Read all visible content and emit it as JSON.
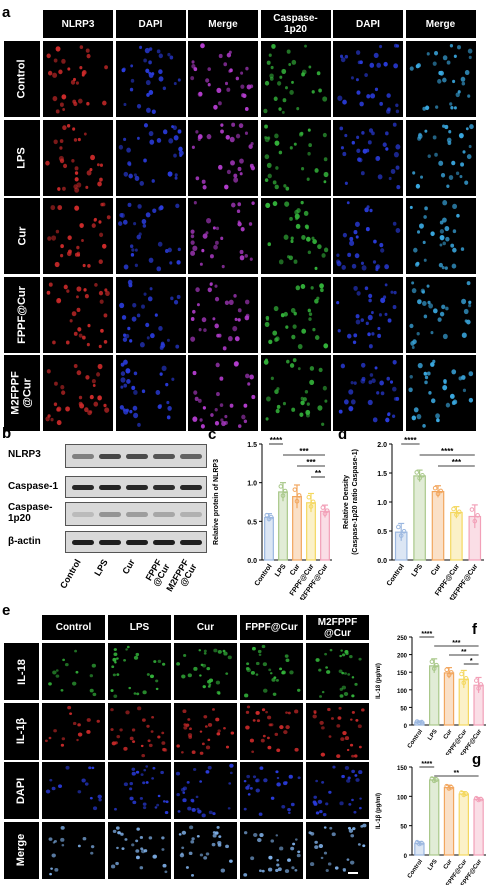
{
  "panel_a": {
    "letter": "a",
    "headers": [
      "NLRP3",
      "DAPI",
      "Merge",
      "Caspase-1p20",
      "DAPI",
      "Merge"
    ],
    "rows": [
      "Control",
      "LPS",
      "Cur",
      "FPPF@Cur",
      "M2FPPF@Cur"
    ],
    "row_display": [
      "Control",
      "LPS",
      "Cur",
      "FPPF@Cur",
      "M2FPPF\n@Cur"
    ],
    "colors": [
      "#cc2a2a",
      "#2a3cdd",
      "#b23ccc",
      "#33b23a",
      "#2a3cdd",
      "#3aa8e0"
    ]
  },
  "panel_b": {
    "letter": "b",
    "bands": [
      "NLRP3",
      "Caspase-1",
      "Caspase-1p20",
      "β-actin"
    ],
    "band_display": [
      "NLRP3",
      "Caspase-1",
      "Caspase-\n1p20",
      "β-actin"
    ],
    "lanes": [
      "Control",
      "LPS",
      "Cur",
      "FPPF@Cur",
      "M2FPPF@Cur"
    ],
    "lane_display": [
      "Control",
      "LPS",
      "Cur",
      "FPPF\n@Cur",
      "M2FPPF\n@Cur"
    ]
  },
  "panel_e": {
    "letter": "e",
    "headers": [
      "Control",
      "LPS",
      "Cur",
      "FPPF@Cur",
      "M2FPPF@Cur"
    ],
    "header_display": [
      "Control",
      "LPS",
      "Cur",
      "FPPF@Cur",
      "M2FPPF\n@Cur"
    ],
    "rows": [
      "IL-18",
      "IL-1β",
      "DAPI",
      "Merge"
    ],
    "colors": [
      "#33b23a",
      "#cc2a2a",
      "#2a3cdd",
      "#7fb0e8"
    ]
  },
  "chart_data": [
    {
      "letter": "c",
      "type": "bar",
      "ylabel": "Relative protein of NLRP3",
      "categories": [
        "Control",
        "LPS",
        "Cur",
        "FPPF@Cur",
        "M2FPPF@Cur"
      ],
      "values": [
        0.55,
        0.88,
        0.82,
        0.74,
        0.63
      ],
      "errors": [
        0.05,
        0.12,
        0.15,
        0.12,
        0.08
      ],
      "ylim": [
        0,
        1.5
      ],
      "yticks": [
        "0.0",
        "0.5",
        "1.0",
        "1.5"
      ],
      "colors": [
        "#9bb7e0",
        "#a9c88a",
        "#f2a65e",
        "#f4d860",
        "#f2a0b8"
      ],
      "sig": [
        {
          "from": 0,
          "to": 1,
          "label": "****",
          "level": 0
        },
        {
          "from": 1,
          "to": 4,
          "label": "***",
          "level": 1
        },
        {
          "from": 2,
          "to": 4,
          "label": "***",
          "level": 2
        },
        {
          "from": 3,
          "to": 4,
          "label": "**",
          "level": 3
        }
      ]
    },
    {
      "letter": "d",
      "type": "bar",
      "ylabel": "Relative Density (Caspase-1p20 ratio Caspase-1)",
      "ylabel_lines": [
        "Relative Density",
        "(Caspase-1p20 ratio Caspase-1)"
      ],
      "categories": [
        "Control",
        "LPS",
        "Cur",
        "FPPF@Cur",
        "M2FPPF@Cur"
      ],
      "values": [
        0.48,
        1.45,
        1.18,
        0.82,
        0.75
      ],
      "errors": [
        0.15,
        0.1,
        0.1,
        0.1,
        0.2
      ],
      "ylim": [
        0,
        2.0
      ],
      "yticks": [
        "0.0",
        "0.5",
        "1.0",
        "1.5",
        "2.0"
      ],
      "colors": [
        "#9bb7e0",
        "#a9c88a",
        "#f2a65e",
        "#f4d860",
        "#f2a0b8"
      ],
      "sig": [
        {
          "from": 0,
          "to": 1,
          "label": "****",
          "level": 0
        },
        {
          "from": 1,
          "to": 4,
          "label": "****",
          "level": 1
        },
        {
          "from": 2,
          "to": 4,
          "label": "***",
          "level": 2
        }
      ]
    },
    {
      "letter": "f",
      "type": "bar",
      "ylabel": "IL-18 (pg/ml)",
      "categories": [
        "Control",
        "LPS",
        "Cur",
        "FPPF@Cur",
        "M2FPPF@Cur"
      ],
      "values": [
        8,
        168,
        148,
        130,
        113
      ],
      "errors": [
        3,
        20,
        15,
        25,
        22
      ],
      "ylim": [
        0,
        250
      ],
      "yticks": [
        "0",
        "50",
        "100",
        "150",
        "200",
        "250"
      ],
      "colors": [
        "#9bb7e0",
        "#a9c88a",
        "#f2a65e",
        "#f4d860",
        "#f2a0b8"
      ],
      "sig": [
        {
          "from": 0,
          "to": 1,
          "label": "****",
          "level": 0
        },
        {
          "from": 1,
          "to": 4,
          "label": "***",
          "level": 1
        },
        {
          "from": 2,
          "to": 4,
          "label": "**",
          "level": 2
        },
        {
          "from": 3,
          "to": 4,
          "label": "*",
          "level": 3
        }
      ]
    },
    {
      "letter": "g",
      "type": "bar",
      "ylabel": "IL-1β (pg/ml)",
      "categories": [
        "Control",
        "LPS",
        "Cur",
        "FPPF@Cur",
        "M2FPPF@Cur"
      ],
      "values": [
        20,
        128,
        115,
        104,
        95
      ],
      "errors": [
        3,
        4,
        4,
        4,
        3
      ],
      "ylim": [
        0,
        150
      ],
      "yticks": [
        "0",
        "50",
        "100",
        "150"
      ],
      "colors": [
        "#9bb7e0",
        "#a9c88a",
        "#f2a65e",
        "#f4d860",
        "#f2a0b8"
      ],
      "sig": [
        {
          "from": 0,
          "to": 1,
          "label": "****",
          "level": 0
        },
        {
          "from": 1,
          "to": 4,
          "label": "**",
          "level": 1
        }
      ]
    }
  ]
}
